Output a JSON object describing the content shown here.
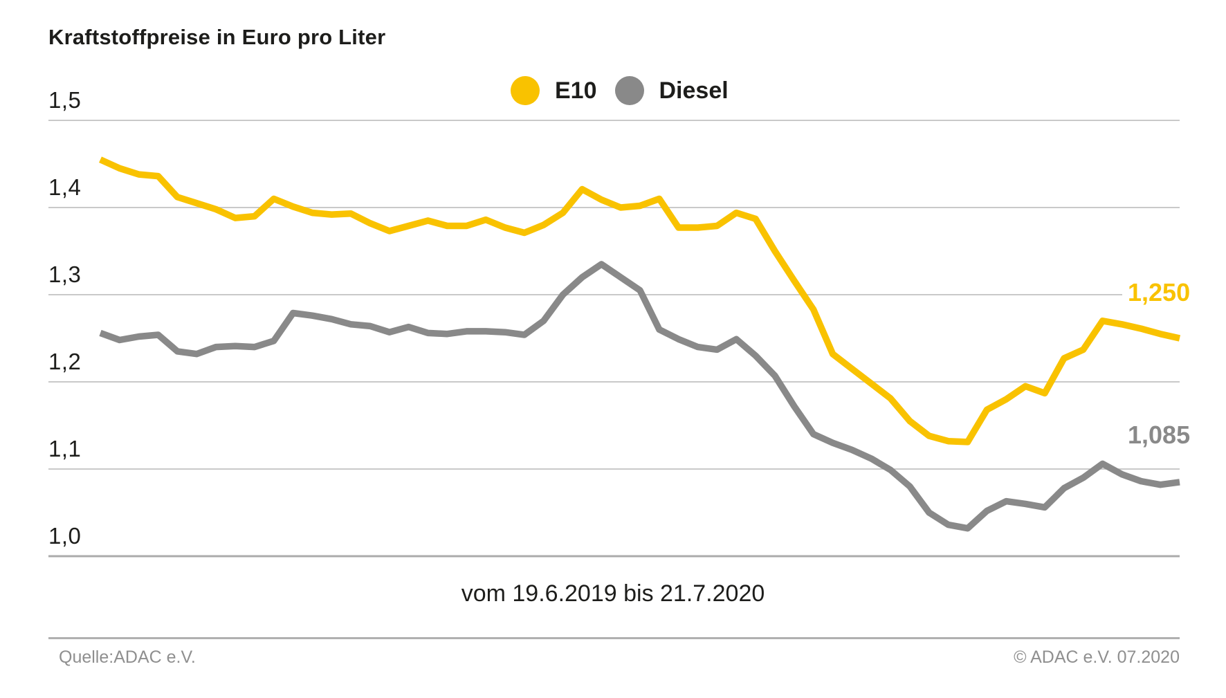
{
  "title": "Kraftstoffpreise in Euro pro Liter",
  "legend": {
    "items": [
      {
        "label": "E10",
        "color": "#F9C200"
      },
      {
        "label": "Diesel",
        "color": "#898989"
      }
    ]
  },
  "footer": {
    "source": "Quelle:ADAC e.V.",
    "copyright": "© ADAC e.V. 07.2020"
  },
  "chart_data": {
    "type": "line",
    "title": "Kraftstoffpreise in Euro pro Liter",
    "xlabel": "vom 19.6.2019 bis 21.7.2020",
    "ylabel": "Euro pro Liter",
    "x_start": "19.6.2019",
    "x_end": "21.7.2020",
    "x_interval": "weekly",
    "ylim": [
      1.0,
      1.5
    ],
    "grid": "horizontal",
    "legend_position": "top-center",
    "y_ticks": [
      {
        "label": "1,5",
        "value": 1.5
      },
      {
        "label": "1,4",
        "value": 1.4
      },
      {
        "label": "1,3",
        "value": 1.3
      },
      {
        "label": "1,2",
        "value": 1.2
      },
      {
        "label": "1,1",
        "value": 1.1
      },
      {
        "label": "1,0",
        "value": 1.0
      }
    ],
    "series": [
      {
        "name": "E10",
        "color": "#F9C200",
        "end_label": "1,250",
        "final_value": 1.25,
        "values": [
          1.455,
          1.445,
          1.438,
          1.436,
          1.412,
          1.405,
          1.398,
          1.388,
          1.39,
          1.41,
          1.401,
          1.394,
          1.392,
          1.393,
          1.382,
          1.373,
          1.379,
          1.385,
          1.379,
          1.379,
          1.386,
          1.377,
          1.371,
          1.38,
          1.394,
          1.421,
          1.409,
          1.4,
          1.402,
          1.41,
          1.377,
          1.377,
          1.379,
          1.394,
          1.387,
          1.35,
          1.316,
          1.283,
          1.232,
          1.215,
          1.198,
          1.181,
          1.155,
          1.138,
          1.132,
          1.131,
          1.168,
          1.18,
          1.195,
          1.187,
          1.227,
          1.237,
          1.27,
          1.266,
          1.261,
          1.255,
          1.25
        ]
      },
      {
        "name": "Diesel",
        "color": "#898989",
        "end_label": "1,085",
        "final_value": 1.085,
        "values": [
          1.256,
          1.248,
          1.252,
          1.254,
          1.235,
          1.232,
          1.24,
          1.241,
          1.24,
          1.247,
          1.279,
          1.276,
          1.272,
          1.266,
          1.264,
          1.257,
          1.263,
          1.256,
          1.255,
          1.258,
          1.258,
          1.257,
          1.254,
          1.27,
          1.3,
          1.32,
          1.335,
          1.32,
          1.305,
          1.26,
          1.249,
          1.24,
          1.237,
          1.249,
          1.23,
          1.207,
          1.172,
          1.14,
          1.13,
          1.122,
          1.112,
          1.099,
          1.08,
          1.05,
          1.036,
          1.032,
          1.052,
          1.063,
          1.06,
          1.056,
          1.078,
          1.09,
          1.106,
          1.094,
          1.086,
          1.082,
          1.085
        ]
      }
    ]
  }
}
